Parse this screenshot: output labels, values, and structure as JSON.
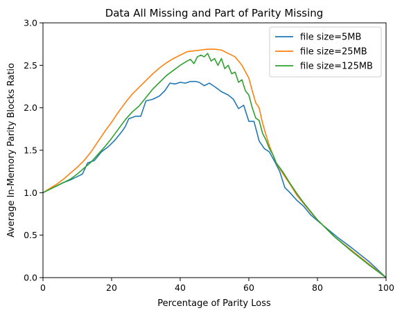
{
  "chart_data": {
    "type": "line",
    "title": "Data All Missing and Part of Parity Missing",
    "xlabel": "Percentage of Parity Loss",
    "ylabel": "Average In-Memory Parity Blocks Ratio",
    "xlim": [
      0,
      100
    ],
    "ylim": [
      0,
      3.0
    ],
    "xticks": [
      0,
      20,
      40,
      60,
      80,
      100
    ],
    "yticks": [
      0.0,
      0.5,
      1.0,
      1.5,
      2.0,
      2.5,
      3.0
    ],
    "ytick_labels": [
      "0.0",
      "0.5",
      "1.0",
      "1.5",
      "2.0",
      "2.5",
      "3.0"
    ],
    "grid": false,
    "legend_position": "top-right",
    "series": [
      {
        "name": "file size=5MB",
        "color": "#1f77b4",
        "x": [
          0,
          2,
          4,
          6,
          8,
          10,
          11.5,
          13,
          15,
          17,
          19,
          21,
          23,
          24,
          25,
          27,
          28.5,
          30,
          32,
          34,
          35.5,
          37,
          38.5,
          40,
          41.5,
          43,
          44.5,
          45.5,
          47,
          48.5,
          50,
          52,
          54,
          55.5,
          57,
          58.5,
          60,
          61.5,
          63,
          64.5,
          66,
          67.5,
          69,
          70.5,
          72,
          74,
          76,
          78,
          80,
          83,
          86,
          90,
          95,
          100
        ],
        "y": [
          1.0,
          1.04,
          1.08,
          1.12,
          1.15,
          1.19,
          1.22,
          1.35,
          1.38,
          1.48,
          1.54,
          1.62,
          1.72,
          1.78,
          1.87,
          1.9,
          1.9,
          2.08,
          2.1,
          2.14,
          2.2,
          2.29,
          2.28,
          2.3,
          2.29,
          2.31,
          2.31,
          2.3,
          2.26,
          2.29,
          2.25,
          2.19,
          2.15,
          2.1,
          1.99,
          2.03,
          1.84,
          1.84,
          1.61,
          1.52,
          1.48,
          1.37,
          1.25,
          1.06,
          1.0,
          0.91,
          0.84,
          0.74,
          0.67,
          0.57,
          0.47,
          0.35,
          0.19,
          0.0
        ]
      },
      {
        "name": "file size=25MB",
        "color": "#ff7f0e",
        "x": [
          0,
          2,
          4,
          6,
          8,
          10,
          12,
          14,
          16,
          18,
          20,
          22,
          24,
          26,
          28,
          30,
          32,
          34,
          36,
          38,
          40,
          42,
          44,
          46,
          48,
          50,
          52,
          54,
          56,
          58,
          60,
          61,
          62,
          63,
          64,
          65,
          66,
          67,
          68,
          70,
          72,
          74,
          76,
          78,
          80,
          85,
          90,
          95,
          100
        ],
        "y": [
          1.0,
          1.05,
          1.1,
          1.16,
          1.23,
          1.3,
          1.38,
          1.48,
          1.6,
          1.72,
          1.83,
          1.95,
          2.06,
          2.16,
          2.24,
          2.32,
          2.4,
          2.47,
          2.53,
          2.58,
          2.62,
          2.66,
          2.67,
          2.68,
          2.69,
          2.69,
          2.68,
          2.64,
          2.6,
          2.5,
          2.35,
          2.2,
          2.06,
          2.0,
          1.82,
          1.68,
          1.55,
          1.45,
          1.35,
          1.22,
          1.1,
          0.97,
          0.87,
          0.77,
          0.68,
          0.48,
          0.32,
          0.16,
          0.0
        ]
      },
      {
        "name": "file size=125MB",
        "color": "#2ca02c",
        "x": [
          0,
          2,
          4,
          6,
          8,
          10,
          12,
          14,
          16,
          18,
          20,
          22,
          24,
          26,
          28,
          30,
          32,
          34,
          36,
          38,
          40,
          42,
          43,
          44,
          45,
          46,
          47,
          48,
          49,
          50,
          51,
          52,
          53,
          54,
          55,
          56,
          57,
          58,
          59,
          60,
          61,
          62,
          63,
          64,
          65,
          66,
          67,
          68,
          70,
          72,
          74,
          76,
          78,
          80,
          85,
          90,
          95,
          100
        ],
        "y": [
          1.0,
          1.04,
          1.08,
          1.12,
          1.16,
          1.22,
          1.29,
          1.36,
          1.45,
          1.54,
          1.64,
          1.75,
          1.86,
          1.95,
          2.02,
          2.12,
          2.22,
          2.3,
          2.38,
          2.44,
          2.5,
          2.55,
          2.57,
          2.52,
          2.6,
          2.62,
          2.6,
          2.64,
          2.55,
          2.58,
          2.5,
          2.58,
          2.46,
          2.5,
          2.4,
          2.42,
          2.3,
          2.33,
          2.2,
          2.15,
          2.0,
          1.88,
          1.85,
          1.7,
          1.62,
          1.52,
          1.45,
          1.35,
          1.24,
          1.11,
          0.99,
          0.88,
          0.78,
          0.68,
          0.48,
          0.31,
          0.15,
          0.0
        ]
      }
    ]
  }
}
